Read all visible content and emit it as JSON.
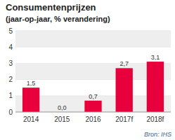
{
  "chart_data": {
    "type": "bar",
    "title": "Consumentenprijzen",
    "subtitle": "(jaar-op-jaar, % verandering)",
    "categories": [
      "2014",
      "2015",
      "2016",
      "2017f",
      "2018f"
    ],
    "values": [
      1.5,
      0.0,
      0.7,
      2.7,
      3.1
    ],
    "value_labels": [
      "1,5",
      "0,0",
      "0,7",
      "2,7",
      "3,1"
    ],
    "data_labels": true,
    "color": "#e8003c",
    "ylim": [
      0,
      5
    ],
    "yticks": [
      0,
      1,
      2,
      3,
      4,
      5
    ],
    "grid": true,
    "annotations": [
      "Bron: IHS"
    ]
  }
}
